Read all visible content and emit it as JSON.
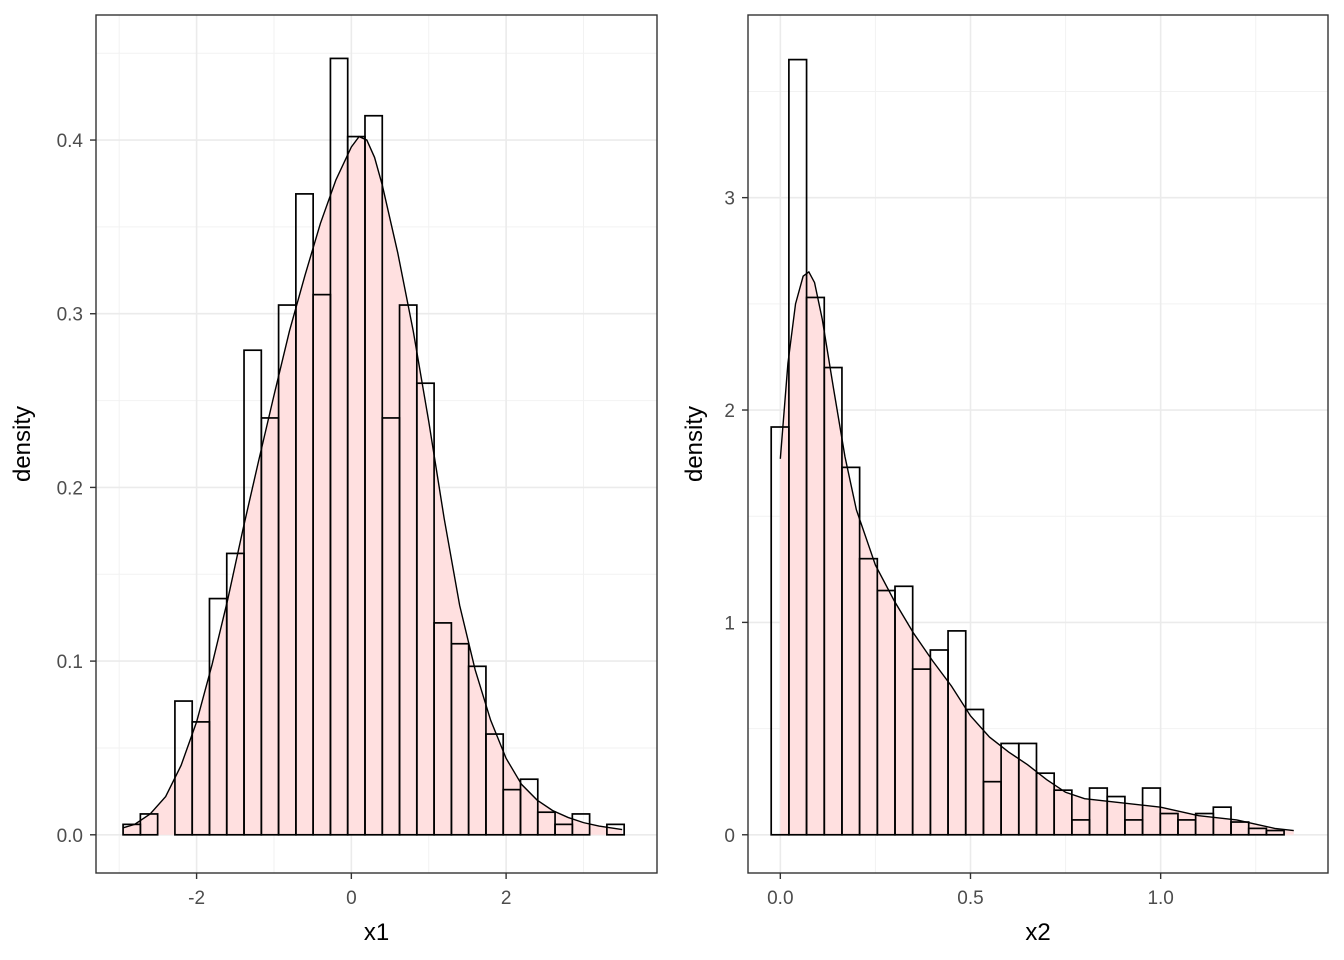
{
  "chart_data": [
    {
      "type": "histogram",
      "panel": "left",
      "xlabel": "x1",
      "ylabel": "density",
      "xlim": [
        -3.3,
        3.95
      ],
      "ylim": [
        -0.022,
        0.472
      ],
      "x_ticks": [
        -2,
        0,
        2
      ],
      "x_tick_labels": [
        "-2",
        "0",
        "2"
      ],
      "y_ticks": [
        0.0,
        0.1,
        0.2,
        0.3,
        0.4
      ],
      "y_tick_labels": [
        "0.0",
        "0.1",
        "0.2",
        "0.3",
        "0.4"
      ],
      "grid": true,
      "bins": {
        "start": -2.95,
        "width": 0.2233,
        "values": [
          0.006,
          0.012,
          0.0,
          0.077,
          0.065,
          0.136,
          0.162,
          0.279,
          0.24,
          0.305,
          0.369,
          0.311,
          0.447,
          0.402,
          0.414,
          0.24,
          0.305,
          0.26,
          0.122,
          0.11,
          0.097,
          0.058,
          0.026,
          0.032,
          0.013,
          0.006,
          0.012,
          0.0,
          0.006
        ]
      },
      "density_curve": {
        "x": [
          -2.95,
          -2.8,
          -2.6,
          -2.4,
          -2.2,
          -2.0,
          -1.8,
          -1.6,
          -1.4,
          -1.2,
          -1.0,
          -0.8,
          -0.6,
          -0.4,
          -0.2,
          0.0,
          0.1,
          0.2,
          0.3,
          0.4,
          0.6,
          0.8,
          1.0,
          1.2,
          1.4,
          1.6,
          1.8,
          2.0,
          2.2,
          2.4,
          2.6,
          2.8,
          3.0,
          3.2,
          3.5
        ],
        "y": [
          0.004,
          0.006,
          0.012,
          0.022,
          0.04,
          0.065,
          0.098,
          0.135,
          0.176,
          0.215,
          0.253,
          0.29,
          0.322,
          0.352,
          0.377,
          0.396,
          0.402,
          0.4,
          0.39,
          0.374,
          0.335,
          0.29,
          0.238,
          0.182,
          0.132,
          0.095,
          0.066,
          0.044,
          0.029,
          0.02,
          0.014,
          0.01,
          0.007,
          0.005,
          0.003
        ]
      },
      "colors": {
        "fill": "#ffe0e0",
        "stroke": "#000000"
      }
    },
    {
      "type": "histogram",
      "panel": "right",
      "xlabel": "x2",
      "ylabel": "density",
      "xlim": [
        -0.085,
        1.44
      ],
      "ylim": [
        -0.18,
        3.86
      ],
      "x_ticks": [
        0.0,
        0.5,
        1.0
      ],
      "x_tick_labels": [
        "0.0",
        "0.5",
        "1.0"
      ],
      "y_ticks": [
        0,
        1,
        2,
        3
      ],
      "y_tick_labels": [
        "0",
        "1",
        "2",
        "3"
      ],
      "grid": true,
      "bins": {
        "start": -0.024,
        "width": 0.0465,
        "values": [
          1.92,
          3.65,
          2.53,
          2.2,
          1.73,
          1.3,
          1.15,
          1.17,
          0.78,
          0.87,
          0.96,
          0.59,
          0.25,
          0.43,
          0.43,
          0.29,
          0.21,
          0.07,
          0.22,
          0.18,
          0.07,
          0.22,
          0.1,
          0.07,
          0.1,
          0.13,
          0.06,
          0.03,
          0.02
        ]
      },
      "density_curve": {
        "x": [
          0.0,
          0.02,
          0.04,
          0.06,
          0.075,
          0.09,
          0.11,
          0.14,
          0.17,
          0.2,
          0.25,
          0.3,
          0.35,
          0.4,
          0.45,
          0.5,
          0.55,
          0.6,
          0.65,
          0.7,
          0.75,
          0.8,
          0.85,
          0.9,
          0.95,
          1.0,
          1.05,
          1.1,
          1.15,
          1.2,
          1.25,
          1.3,
          1.35
        ],
        "y": [
          1.77,
          2.22,
          2.5,
          2.63,
          2.65,
          2.6,
          2.43,
          2.1,
          1.78,
          1.53,
          1.27,
          1.1,
          0.95,
          0.82,
          0.7,
          0.56,
          0.46,
          0.39,
          0.33,
          0.26,
          0.2,
          0.17,
          0.16,
          0.15,
          0.14,
          0.13,
          0.11,
          0.09,
          0.08,
          0.07,
          0.05,
          0.03,
          0.02
        ]
      },
      "colors": {
        "fill": "#ffe0e0",
        "stroke": "#000000"
      }
    }
  ]
}
